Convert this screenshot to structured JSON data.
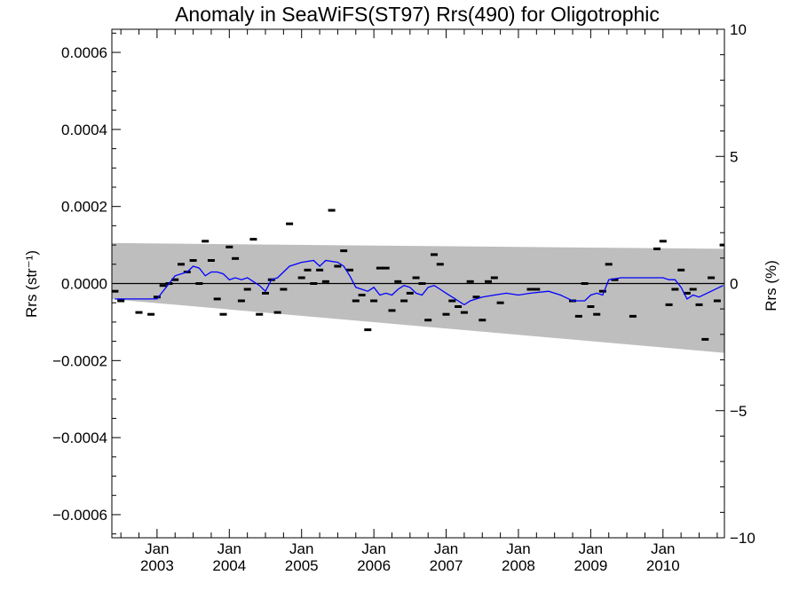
{
  "chart_data": {
    "type": "scatter",
    "title": "Anomaly in SeaWiFS(ST97) Rrs(490) for Oligotrophic",
    "ylabel_left": "Rrs (str⁻¹)",
    "ylabel_right": "Rrs (%)",
    "xlabel": "",
    "xlim": [
      "2002-06",
      "2010-11"
    ],
    "ylim": [
      -0.00066,
      0.00066
    ],
    "y2lim": [
      -10,
      10
    ],
    "grid": false,
    "y_ticks": [
      {
        "value": 0.0006,
        "label": "0.0006"
      },
      {
        "value": 0.0004,
        "label": "0.0004"
      },
      {
        "value": 0.0002,
        "label": "0.0002"
      },
      {
        "value": 0.0,
        "label": "0.0000"
      },
      {
        "value": -0.0002,
        "label": "−0.0002"
      },
      {
        "value": -0.0004,
        "label": "−0.0004"
      },
      {
        "value": -0.0006,
        "label": "−0.0006"
      }
    ],
    "y2_ticks": [
      {
        "value": 10,
        "label": "10"
      },
      {
        "value": 5,
        "label": "5"
      },
      {
        "value": 0,
        "label": "0"
      },
      {
        "value": -5,
        "label": "−5"
      },
      {
        "value": -10,
        "label": "−10"
      }
    ],
    "x_ticks": [
      {
        "month": "Jan",
        "year": "2003",
        "date": "2003-01"
      },
      {
        "month": "Jan",
        "year": "2004",
        "date": "2004-01"
      },
      {
        "month": "Jan",
        "year": "2005",
        "date": "2005-01"
      },
      {
        "month": "Jan",
        "year": "2006",
        "date": "2006-01"
      },
      {
        "month": "Jan",
        "year": "2007",
        "date": "2007-01"
      },
      {
        "month": "Jan",
        "year": "2008",
        "date": "2008-01"
      },
      {
        "month": "Jan",
        "year": "2009",
        "date": "2009-01"
      },
      {
        "month": "Jan",
        "year": "2010",
        "date": "2010-01"
      }
    ],
    "uncertainty_band": {
      "color": "#bebebe",
      "start": {
        "date": "2002-06",
        "upper": 0.000105,
        "lower": -4e-05
      },
      "end": {
        "date": "2010-11",
        "upper": 9e-05,
        "lower": -0.00018
      }
    },
    "zero_line": {
      "value": 0,
      "color": "#000000"
    },
    "series": [
      {
        "kind": "points",
        "color": "#000000",
        "points": [
          {
            "x": "2002-06",
            "y": -2e-05
          },
          {
            "x": "2002-07",
            "y": -4.5e-05
          },
          {
            "x": "2002-10",
            "y": -7.5e-05
          },
          {
            "x": "2002-12",
            "y": -8e-05
          },
          {
            "x": "2003-01",
            "y": -3.5e-05
          },
          {
            "x": "2003-02",
            "y": -5e-06
          },
          {
            "x": "2003-03",
            "y": 0.0
          },
          {
            "x": "2003-04",
            "y": 1e-05
          },
          {
            "x": "2003-05",
            "y": 5e-05
          },
          {
            "x": "2003-06",
            "y": 3e-05
          },
          {
            "x": "2003-07",
            "y": 6e-05
          },
          {
            "x": "2003-08",
            "y": 0.0
          },
          {
            "x": "2003-09",
            "y": 0.00011
          },
          {
            "x": "2003-10",
            "y": 6e-05
          },
          {
            "x": "2003-11",
            "y": -4e-05
          },
          {
            "x": "2003-12",
            "y": -8e-05
          },
          {
            "x": "2004-01",
            "y": 9.5e-05
          },
          {
            "x": "2004-02",
            "y": 6.5e-05
          },
          {
            "x": "2004-03",
            "y": -4.5e-05
          },
          {
            "x": "2004-04",
            "y": -1.5e-05
          },
          {
            "x": "2004-05",
            "y": 0.000115
          },
          {
            "x": "2004-06",
            "y": -8e-05
          },
          {
            "x": "2004-07",
            "y": -2.5e-05
          },
          {
            "x": "2004-08",
            "y": 1e-05
          },
          {
            "x": "2004-09",
            "y": -7.5e-05
          },
          {
            "x": "2004-10",
            "y": -1.5e-05
          },
          {
            "x": "2004-11",
            "y": 0.000155
          },
          {
            "x": "2005-01",
            "y": 1.5e-05
          },
          {
            "x": "2005-02",
            "y": 3.5e-05
          },
          {
            "x": "2005-03",
            "y": 0.0
          },
          {
            "x": "2005-04",
            "y": 3.5e-05
          },
          {
            "x": "2005-05",
            "y": 5e-06
          },
          {
            "x": "2005-06",
            "y": 0.00019
          },
          {
            "x": "2005-07",
            "y": 4.5e-05
          },
          {
            "x": "2005-08",
            "y": 8.5e-05
          },
          {
            "x": "2005-09",
            "y": 3.5e-05
          },
          {
            "x": "2005-10",
            "y": -4.5e-05
          },
          {
            "x": "2005-11",
            "y": -3e-05
          },
          {
            "x": "2005-12",
            "y": -0.00012
          },
          {
            "x": "2006-01",
            "y": -4.5e-05
          },
          {
            "x": "2006-02",
            "y": 4e-05
          },
          {
            "x": "2006-03",
            "y": 4e-05
          },
          {
            "x": "2006-04",
            "y": -7e-05
          },
          {
            "x": "2006-05",
            "y": 5e-06
          },
          {
            "x": "2006-06",
            "y": -4.5e-05
          },
          {
            "x": "2006-07",
            "y": -2.5e-05
          },
          {
            "x": "2006-08",
            "y": 1.5e-05
          },
          {
            "x": "2006-09",
            "y": 0.0
          },
          {
            "x": "2006-10",
            "y": -9.5e-05
          },
          {
            "x": "2006-11",
            "y": 7.5e-05
          },
          {
            "x": "2006-12",
            "y": 5e-05
          },
          {
            "x": "2007-01",
            "y": -8e-05
          },
          {
            "x": "2007-02",
            "y": -4.5e-05
          },
          {
            "x": "2007-03",
            "y": -6e-05
          },
          {
            "x": "2007-04",
            "y": -7.5e-05
          },
          {
            "x": "2007-05",
            "y": 5e-06
          },
          {
            "x": "2007-06",
            "y": -3.5e-05
          },
          {
            "x": "2007-07",
            "y": -9.5e-05
          },
          {
            "x": "2007-08",
            "y": 5e-06
          },
          {
            "x": "2007-09",
            "y": 1.5e-05
          },
          {
            "x": "2007-10",
            "y": -5e-05
          },
          {
            "x": "2008-03",
            "y": -1.5e-05
          },
          {
            "x": "2008-04",
            "y": -1.5e-05
          },
          {
            "x": "2008-10",
            "y": -4.5e-05
          },
          {
            "x": "2008-11",
            "y": -8.5e-05
          },
          {
            "x": "2008-12",
            "y": 0.0
          },
          {
            "x": "2009-01",
            "y": -6e-05
          },
          {
            "x": "2009-02",
            "y": -8e-05
          },
          {
            "x": "2009-03",
            "y": -2e-05
          },
          {
            "x": "2009-04",
            "y": 5e-05
          },
          {
            "x": "2009-05",
            "y": 1e-05
          },
          {
            "x": "2009-08",
            "y": -8.5e-05
          },
          {
            "x": "2009-12",
            "y": 9e-05
          },
          {
            "x": "2010-01",
            "y": 0.00011
          },
          {
            "x": "2010-02",
            "y": -5.5e-05
          },
          {
            "x": "2010-03",
            "y": -1.5e-05
          },
          {
            "x": "2010-04",
            "y": 3.5e-05
          },
          {
            "x": "2010-05",
            "y": -2.5e-05
          },
          {
            "x": "2010-06",
            "y": -1.5e-05
          },
          {
            "x": "2010-07",
            "y": -5.5e-05
          },
          {
            "x": "2010-08",
            "y": -0.000145
          },
          {
            "x": "2010-09",
            "y": 1.5e-05
          },
          {
            "x": "2010-10",
            "y": -4.5e-05
          },
          {
            "x": "2010-11",
            "y": 0.0001
          }
        ]
      },
      {
        "kind": "line",
        "color": "#0000ff",
        "points": [
          {
            "x": "2002-06",
            "y": -4e-05
          },
          {
            "x": "2002-08",
            "y": -4e-05
          },
          {
            "x": "2003-01",
            "y": -4e-05
          },
          {
            "x": "2003-04",
            "y": 2e-05
          },
          {
            "x": "2003-06",
            "y": 3e-05
          },
          {
            "x": "2003-07",
            "y": 4.5e-05
          },
          {
            "x": "2003-08",
            "y": 4e-05
          },
          {
            "x": "2003-09",
            "y": 2e-05
          },
          {
            "x": "2003-10",
            "y": 3e-05
          },
          {
            "x": "2003-11",
            "y": 3e-05
          },
          {
            "x": "2003-12",
            "y": 2.5e-05
          },
          {
            "x": "2004-01",
            "y": 1e-05
          },
          {
            "x": "2004-02",
            "y": 1.5e-05
          },
          {
            "x": "2004-03",
            "y": 1e-05
          },
          {
            "x": "2004-04",
            "y": 1.5e-05
          },
          {
            "x": "2004-05",
            "y": 5e-06
          },
          {
            "x": "2004-06",
            "y": -5e-06
          },
          {
            "x": "2004-07",
            "y": -2e-05
          },
          {
            "x": "2004-08",
            "y": 1e-05
          },
          {
            "x": "2004-09",
            "y": 1.5e-05
          },
          {
            "x": "2004-10",
            "y": 3e-05
          },
          {
            "x": "2004-11",
            "y": 4.5e-05
          },
          {
            "x": "2005-01",
            "y": 5.5e-05
          },
          {
            "x": "2005-03",
            "y": 6e-05
          },
          {
            "x": "2005-04",
            "y": 4.5e-05
          },
          {
            "x": "2005-05",
            "y": 6e-05
          },
          {
            "x": "2005-07",
            "y": 5.5e-05
          },
          {
            "x": "2005-08",
            "y": 4.5e-05
          },
          {
            "x": "2005-09",
            "y": 2e-05
          },
          {
            "x": "2005-10",
            "y": -1e-05
          },
          {
            "x": "2005-11",
            "y": -1.5e-05
          },
          {
            "x": "2005-12",
            "y": -2e-05
          },
          {
            "x": "2006-01",
            "y": -1e-05
          },
          {
            "x": "2006-02",
            "y": -3e-05
          },
          {
            "x": "2006-03",
            "y": -2.5e-05
          },
          {
            "x": "2006-04",
            "y": -3e-05
          },
          {
            "x": "2006-05",
            "y": -1.5e-05
          },
          {
            "x": "2006-06",
            "y": -5e-06
          },
          {
            "x": "2006-07",
            "y": -1e-05
          },
          {
            "x": "2006-08",
            "y": -2.5e-05
          },
          {
            "x": "2006-09",
            "y": -3e-05
          },
          {
            "x": "2006-10",
            "y": -1e-05
          },
          {
            "x": "2006-11",
            "y": -5e-06
          },
          {
            "x": "2006-12",
            "y": -1.5e-05
          },
          {
            "x": "2007-01",
            "y": -2.5e-05
          },
          {
            "x": "2007-02",
            "y": -3.5e-05
          },
          {
            "x": "2007-03",
            "y": -4.5e-05
          },
          {
            "x": "2007-04",
            "y": -5.5e-05
          },
          {
            "x": "2007-05",
            "y": -4.5e-05
          },
          {
            "x": "2007-06",
            "y": -4e-05
          },
          {
            "x": "2007-07",
            "y": -3.5e-05
          },
          {
            "x": "2007-09",
            "y": -3e-05
          },
          {
            "x": "2007-11",
            "y": -2.5e-05
          },
          {
            "x": "2008-01",
            "y": -3e-05
          },
          {
            "x": "2008-03",
            "y": -2.5e-05
          },
          {
            "x": "2008-06",
            "y": -2e-05
          },
          {
            "x": "2008-08",
            "y": -3e-05
          },
          {
            "x": "2008-10",
            "y": -4.5e-05
          },
          {
            "x": "2008-12",
            "y": -4.5e-05
          },
          {
            "x": "2009-01",
            "y": -3e-05
          },
          {
            "x": "2009-02",
            "y": -2.5e-05
          },
          {
            "x": "2009-03",
            "y": -3e-05
          },
          {
            "x": "2009-04",
            "y": 1e-05
          },
          {
            "x": "2009-06",
            "y": 1.5e-05
          },
          {
            "x": "2009-09",
            "y": 1.5e-05
          },
          {
            "x": "2010-01",
            "y": 1.5e-05
          },
          {
            "x": "2010-02",
            "y": 1e-05
          },
          {
            "x": "2010-03",
            "y": 1e-05
          },
          {
            "x": "2010-04",
            "y": -1e-05
          },
          {
            "x": "2010-05",
            "y": -4e-05
          },
          {
            "x": "2010-06",
            "y": -3e-05
          },
          {
            "x": "2010-07",
            "y": -3.5e-05
          },
          {
            "x": "2010-09",
            "y": -2e-05
          },
          {
            "x": "2010-11",
            "y": -5e-06
          }
        ]
      }
    ]
  }
}
